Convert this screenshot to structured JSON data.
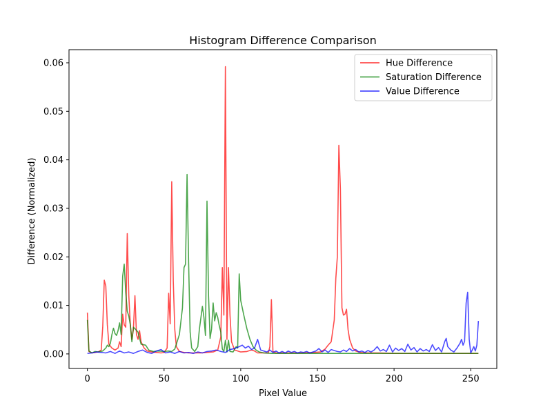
{
  "chart_data": {
    "type": "line",
    "title": "Histogram Difference Comparison",
    "xlabel": "Pixel Value",
    "ylabel": "Difference (Normalized)",
    "xlim": [
      -12,
      267
    ],
    "ylim": [
      -0.003,
      0.0627
    ],
    "x_ticks": [
      0,
      50,
      100,
      150,
      200,
      250
    ],
    "x_tick_labels": [
      "0",
      "50",
      "100",
      "150",
      "200",
      "250"
    ],
    "y_ticks": [
      0,
      0.01,
      0.02,
      0.03,
      0.04,
      0.05,
      0.06
    ],
    "y_tick_labels": [
      "0.00",
      "0.01",
      "0.02",
      "0.03",
      "0.04",
      "0.05",
      "0.06"
    ],
    "grid": false,
    "legend_position": "top-right",
    "series": [
      {
        "name": "Hue Difference",
        "color": "#ff0000",
        "opacity": 0.7,
        "points": [
          [
            0,
            0.0085
          ],
          [
            1,
            0.0005
          ],
          [
            3,
            0.0002
          ],
          [
            5,
            0.0003
          ],
          [
            7,
            0.0004
          ],
          [
            9,
            0.0008
          ],
          [
            10,
            0.0055
          ],
          [
            11,
            0.0152
          ],
          [
            12,
            0.014
          ],
          [
            13,
            0.006
          ],
          [
            14,
            0.002
          ],
          [
            16,
            0.0012
          ],
          [
            18,
            0.0008
          ],
          [
            20,
            0.0012
          ],
          [
            21,
            0.0025
          ],
          [
            22,
            0.0015
          ],
          [
            23,
            0.0082
          ],
          [
            24,
            0.006
          ],
          [
            25,
            0.0055
          ],
          [
            26,
            0.0248
          ],
          [
            27,
            0.012
          ],
          [
            28,
            0.006
          ],
          [
            29,
            0.003
          ],
          [
            30,
            0.005
          ],
          [
            31,
            0.012
          ],
          [
            32,
            0.004
          ],
          [
            33,
            0.003
          ],
          [
            34,
            0.0048
          ],
          [
            35,
            0.0025
          ],
          [
            37,
            0.0012
          ],
          [
            39,
            0.0006
          ],
          [
            42,
            0.0004
          ],
          [
            45,
            0.0003
          ],
          [
            48,
            0.0002
          ],
          [
            50,
            0.0003
          ],
          [
            52,
            0.0012
          ],
          [
            53,
            0.0125
          ],
          [
            54,
            0.0062
          ],
          [
            55,
            0.0355
          ],
          [
            56,
            0.015
          ],
          [
            57,
            0.005
          ],
          [
            58,
            0.0015
          ],
          [
            60,
            0.0005
          ],
          [
            63,
            0.0003
          ],
          [
            66,
            0.0002
          ],
          [
            70,
            0.0002
          ],
          [
            74,
            0.0002
          ],
          [
            78,
            0.0003
          ],
          [
            82,
            0.0004
          ],
          [
            85,
            0.0008
          ],
          [
            87,
            0.0035
          ],
          [
            88,
            0.0178
          ],
          [
            89,
            0.008
          ],
          [
            90,
            0.0592
          ],
          [
            91,
            0.003
          ],
          [
            92,
            0.0178
          ],
          [
            93,
            0.008
          ],
          [
            94,
            0.0025
          ],
          [
            96,
            0.0008
          ],
          [
            100,
            0.0004
          ],
          [
            104,
            0.0005
          ],
          [
            107,
            0.0008
          ],
          [
            109,
            0.0006
          ],
          [
            111,
            0.0002
          ],
          [
            115,
            0.0002
          ],
          [
            118,
            0.0002
          ],
          [
            119,
            0.0015
          ],
          [
            120,
            0.0112
          ],
          [
            121,
            0.0005
          ],
          [
            123,
            0.0002
          ],
          [
            130,
            0.0002
          ],
          [
            140,
            0.0002
          ],
          [
            148,
            0.0003
          ],
          [
            152,
            0.0004
          ],
          [
            155,
            0.001
          ],
          [
            157,
            0.0018
          ],
          [
            159,
            0.0025
          ],
          [
            161,
            0.007
          ],
          [
            162,
            0.0155
          ],
          [
            163,
            0.02
          ],
          [
            164,
            0.043
          ],
          [
            165,
            0.034
          ],
          [
            166,
            0.0095
          ],
          [
            167,
            0.008
          ],
          [
            168,
            0.0082
          ],
          [
            169,
            0.0092
          ],
          [
            170,
            0.005
          ],
          [
            171,
            0.003
          ],
          [
            173,
            0.0012
          ],
          [
            175,
            0.0006
          ],
          [
            178,
            0.0003
          ],
          [
            182,
            0.0002
          ],
          [
            190,
            0.0002
          ],
          [
            200,
            0.0001
          ],
          [
            220,
            0.0001
          ],
          [
            240,
            0.0001
          ],
          [
            255,
            0.0001
          ]
        ]
      },
      {
        "name": "Saturation Difference",
        "color": "#008000",
        "opacity": 0.7,
        "points": [
          [
            0,
            0.007
          ],
          [
            1,
            0.0006
          ],
          [
            3,
            0.0002
          ],
          [
            5,
            0.0005
          ],
          [
            7,
            0.0004
          ],
          [
            10,
            0.0006
          ],
          [
            12,
            0.0012
          ],
          [
            13,
            0.0018
          ],
          [
            14,
            0.0015
          ],
          [
            15,
            0.0022
          ],
          [
            16,
            0.004
          ],
          [
            17,
            0.0053
          ],
          [
            18,
            0.0042
          ],
          [
            19,
            0.0038
          ],
          [
            20,
            0.0048
          ],
          [
            21,
            0.0064
          ],
          [
            22,
            0.004
          ],
          [
            23,
            0.016
          ],
          [
            24,
            0.0185
          ],
          [
            25,
            0.0128
          ],
          [
            26,
            0.0088
          ],
          [
            27,
            0.0078
          ],
          [
            28,
            0.006
          ],
          [
            29,
            0.0025
          ],
          [
            30,
            0.0055
          ],
          [
            31,
            0.0052
          ],
          [
            33,
            0.0045
          ],
          [
            35,
            0.002
          ],
          [
            38,
            0.0018
          ],
          [
            40,
            0.0008
          ],
          [
            43,
            0.0005
          ],
          [
            46,
            0.0006
          ],
          [
            50,
            0.0005
          ],
          [
            53,
            0.0006
          ],
          [
            55,
            0.0005
          ],
          [
            57,
            0.001
          ],
          [
            60,
            0.004
          ],
          [
            62,
            0.0095
          ],
          [
            63,
            0.0178
          ],
          [
            64,
            0.0185
          ],
          [
            65,
            0.037
          ],
          [
            66,
            0.019
          ],
          [
            67,
            0.0045
          ],
          [
            68,
            0.0012
          ],
          [
            70,
            0.0005
          ],
          [
            72,
            0.0015
          ],
          [
            73,
            0.005
          ],
          [
            75,
            0.0098
          ],
          [
            76,
            0.0075
          ],
          [
            77,
            0.0038
          ],
          [
            78,
            0.0315
          ],
          [
            79,
            0.012
          ],
          [
            80,
            0.0032
          ],
          [
            81,
            0.0052
          ],
          [
            82,
            0.0105
          ],
          [
            83,
            0.0068
          ],
          [
            84,
            0.0085
          ],
          [
            85,
            0.0075
          ],
          [
            86,
            0.0058
          ],
          [
            87,
            0.0045
          ],
          [
            88,
            0.001
          ],
          [
            89,
            0.0005
          ],
          [
            90,
            0.0028
          ],
          [
            91,
            0.0004
          ],
          [
            92,
            0.0028
          ],
          [
            93,
            0.0005
          ],
          [
            95,
            0.0004
          ],
          [
            97,
            0.0015
          ],
          [
            98,
            0.0012
          ],
          [
            99,
            0.0165
          ],
          [
            100,
            0.011
          ],
          [
            101,
            0.0095
          ],
          [
            102,
            0.008
          ],
          [
            104,
            0.0052
          ],
          [
            106,
            0.003
          ],
          [
            108,
            0.0015
          ],
          [
            110,
            0.0008
          ],
          [
            112,
            0.0004
          ],
          [
            115,
            0.0002
          ],
          [
            120,
            0.0001
          ],
          [
            130,
            0.0001
          ],
          [
            150,
            0.0001
          ],
          [
            200,
            0.0001
          ],
          [
            255,
            0.0001
          ]
        ]
      },
      {
        "name": "Value Difference",
        "color": "#0000ff",
        "opacity": 0.7,
        "points": [
          [
            0,
            0.0001
          ],
          [
            3,
            0.0002
          ],
          [
            6,
            0.0004
          ],
          [
            9,
            0.0003
          ],
          [
            12,
            0.0002
          ],
          [
            15,
            0.0005
          ],
          [
            18,
            0.0001
          ],
          [
            21,
            0.0006
          ],
          [
            24,
            0.0002
          ],
          [
            27,
            0.0004
          ],
          [
            30,
            0.0001
          ],
          [
            33,
            0.0005
          ],
          [
            36,
            0.0008
          ],
          [
            39,
            0.0003
          ],
          [
            42,
            0.0001
          ],
          [
            45,
            0.0006
          ],
          [
            48,
            0.0009
          ],
          [
            51,
            0.0002
          ],
          [
            54,
            0.0004
          ],
          [
            57,
            0.0001
          ],
          [
            60,
            0.0005
          ],
          [
            63,
            0.0002
          ],
          [
            66,
            0.0003
          ],
          [
            69,
            0.0001
          ],
          [
            72,
            0.0004
          ],
          [
            75,
            0.0002
          ],
          [
            78,
            0.0005
          ],
          [
            81,
            0.0006
          ],
          [
            84,
            0.0008
          ],
          [
            87,
            0.0005
          ],
          [
            90,
            0.0003
          ],
          [
            93,
            0.0009
          ],
          [
            96,
            0.0011
          ],
          [
            99,
            0.0015
          ],
          [
            101,
            0.0018
          ],
          [
            103,
            0.0012
          ],
          [
            105,
            0.0016
          ],
          [
            107,
            0.0009
          ],
          [
            109,
            0.0012
          ],
          [
            111,
            0.003
          ],
          [
            113,
            0.0008
          ],
          [
            115,
            0.0006
          ],
          [
            117,
            0.0004
          ],
          [
            119,
            0.0008
          ],
          [
            121,
            0.0003
          ],
          [
            123,
            0.0006
          ],
          [
            125,
            0.0002
          ],
          [
            127,
            0.0005
          ],
          [
            129,
            0.0002
          ],
          [
            131,
            0.0006
          ],
          [
            133,
            0.0003
          ],
          [
            135,
            0.0005
          ],
          [
            137,
            0.0002
          ],
          [
            139,
            0.0004
          ],
          [
            141,
            0.0003
          ],
          [
            143,
            0.0005
          ],
          [
            145,
            0.0002
          ],
          [
            147,
            0.0004
          ],
          [
            149,
            0.0006
          ],
          [
            151,
            0.0011
          ],
          [
            153,
            0.0004
          ],
          [
            155,
            0.0008
          ],
          [
            157,
            0.0003
          ],
          [
            159,
            0.0009
          ],
          [
            161,
            0.0007
          ],
          [
            163,
            0.0005
          ],
          [
            165,
            0.0004
          ],
          [
            167,
            0.0008
          ],
          [
            169,
            0.0005
          ],
          [
            171,
            0.0011
          ],
          [
            173,
            0.0006
          ],
          [
            175,
            0.0009
          ],
          [
            177,
            0.0004
          ],
          [
            179,
            0.0006
          ],
          [
            181,
            0.0003
          ],
          [
            183,
            0.0007
          ],
          [
            185,
            0.0004
          ],
          [
            187,
            0.0008
          ],
          [
            189,
            0.0015
          ],
          [
            191,
            0.0006
          ],
          [
            193,
            0.0009
          ],
          [
            195,
            0.0005
          ],
          [
            197,
            0.0018
          ],
          [
            199,
            0.0004
          ],
          [
            201,
            0.0012
          ],
          [
            203,
            0.0007
          ],
          [
            205,
            0.0011
          ],
          [
            207,
            0.0005
          ],
          [
            209,
            0.002
          ],
          [
            211,
            0.0008
          ],
          [
            213,
            0.0013
          ],
          [
            215,
            0.0004
          ],
          [
            217,
            0.0011
          ],
          [
            219,
            0.0006
          ],
          [
            221,
            0.0009
          ],
          [
            223,
            0.0005
          ],
          [
            225,
            0.0019
          ],
          [
            227,
            0.0007
          ],
          [
            229,
            0.0013
          ],
          [
            231,
            0.0004
          ],
          [
            233,
            0.0025
          ],
          [
            234,
            0.0032
          ],
          [
            235,
            0.0015
          ],
          [
            237,
            0.0008
          ],
          [
            239,
            0.0004
          ],
          [
            241,
            0.0012
          ],
          [
            243,
            0.0022
          ],
          [
            244,
            0.003
          ],
          [
            245,
            0.0018
          ],
          [
            246,
            0.0026
          ],
          [
            247,
            0.0105
          ],
          [
            248,
            0.0127
          ],
          [
            249,
            0.003
          ],
          [
            250,
            0.0002
          ],
          [
            251,
            0.0008
          ],
          [
            252,
            0.0015
          ],
          [
            253,
            0.0006
          ],
          [
            254,
            0.0018
          ],
          [
            255,
            0.0068
          ]
        ]
      }
    ]
  }
}
